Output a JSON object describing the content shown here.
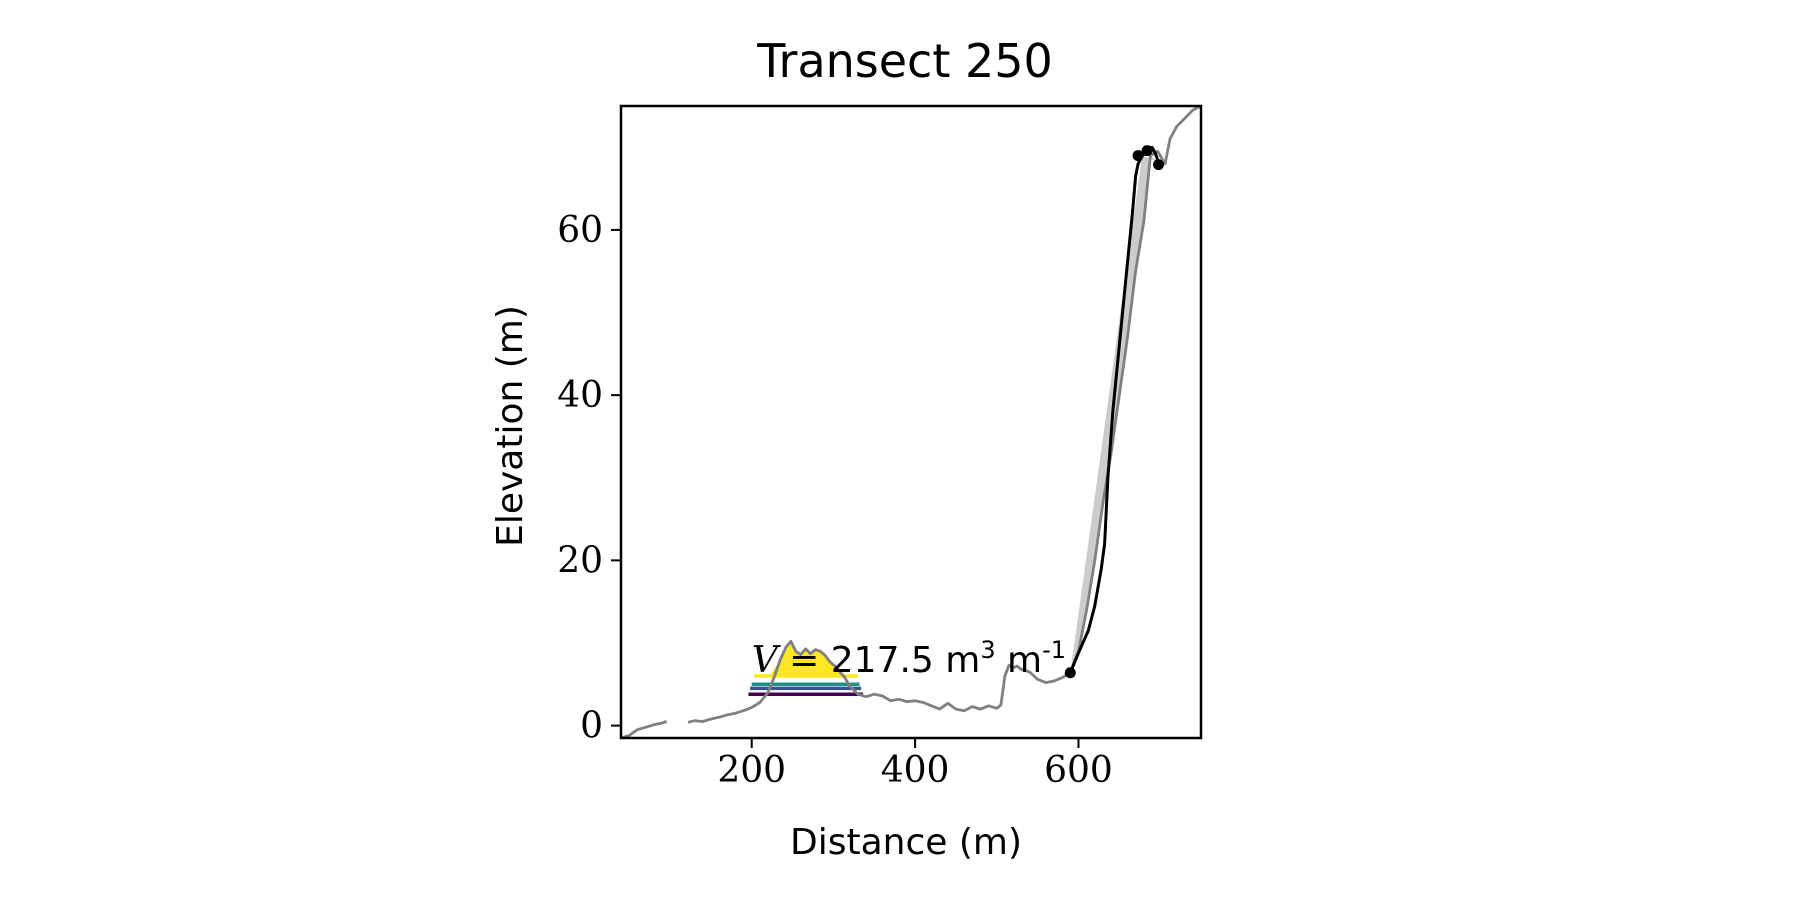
{
  "chart_data": {
    "type": "line",
    "title": "Transect 250",
    "xlabel": "Distance (m)",
    "ylabel": "Elevation (m)",
    "xlim": [
      40,
      750
    ],
    "ylim": [
      -1.5,
      75
    ],
    "xticks": [
      200,
      400,
      600
    ],
    "yticks": [
      0,
      20,
      40,
      60
    ],
    "grid": false,
    "colors": {
      "profile": "#808080",
      "cliff_line": "#000000",
      "cliff_fill": "#cccccc",
      "dune_fill": "#fde725",
      "level_1": "#fde725",
      "level_2": "#21918c",
      "level_3": "#3b528b",
      "level_4": "#440154"
    },
    "profile_segments": [
      [
        [
          40,
          -1.5
        ],
        [
          50,
          -1.2
        ],
        [
          60,
          -0.5
        ],
        [
          70,
          -0.2
        ],
        [
          80,
          0.1
        ],
        [
          90,
          0.3
        ],
        [
          96,
          0.5
        ]
      ],
      [
        [
          122,
          0.4
        ],
        [
          130,
          0.6
        ],
        [
          140,
          0.5
        ],
        [
          150,
          0.8
        ],
        [
          160,
          1.0
        ],
        [
          170,
          1.3
        ],
        [
          180,
          1.5
        ],
        [
          190,
          1.8
        ],
        [
          200,
          2.2
        ],
        [
          210,
          2.8
        ],
        [
          220,
          4.0
        ],
        [
          228,
          6.0
        ],
        [
          235,
          8.0
        ],
        [
          242,
          9.5
        ],
        [
          248,
          10.2
        ],
        [
          254,
          9.0
        ],
        [
          260,
          8.6
        ],
        [
          266,
          9.3
        ],
        [
          272,
          8.7
        ],
        [
          278,
          9.2
        ],
        [
          284,
          9.0
        ],
        [
          290,
          8.5
        ],
        [
          296,
          7.7
        ],
        [
          302,
          7.2
        ],
        [
          308,
          6.5
        ],
        [
          314,
          5.8
        ],
        [
          320,
          4.8
        ],
        [
          326,
          4.2
        ],
        [
          330,
          3.8
        ],
        [
          340,
          3.5
        ],
        [
          350,
          3.8
        ],
        [
          360,
          3.6
        ],
        [
          370,
          3.0
        ],
        [
          380,
          3.2
        ],
        [
          390,
          2.9
        ],
        [
          400,
          3.0
        ],
        [
          410,
          2.8
        ],
        [
          420,
          2.4
        ],
        [
          430,
          2.0
        ],
        [
          440,
          2.7
        ],
        [
          450,
          2.0
        ],
        [
          460,
          1.8
        ],
        [
          470,
          2.3
        ],
        [
          480,
          2.0
        ],
        [
          490,
          2.4
        ],
        [
          500,
          2.1
        ],
        [
          505,
          2.5
        ],
        [
          510,
          6.0
        ],
        [
          515,
          7.3
        ],
        [
          520,
          7.0
        ],
        [
          525,
          7.2
        ],
        [
          530,
          6.8
        ],
        [
          540,
          6.5
        ],
        [
          550,
          5.6
        ],
        [
          560,
          5.2
        ],
        [
          570,
          5.4
        ],
        [
          580,
          5.8
        ],
        [
          590,
          6.4
        ],
        [
          600,
          9.0
        ],
        [
          610,
          14.0
        ],
        [
          620,
          20.0
        ],
        [
          630,
          27.0
        ],
        [
          640,
          33.0
        ],
        [
          650,
          40.0
        ],
        [
          660,
          47.0
        ],
        [
          670,
          55.0
        ],
        [
          680,
          61.0
        ],
        [
          688,
          69.0
        ],
        [
          697,
          69.5
        ],
        [
          706,
          68.0
        ],
        [
          712,
          71.0
        ],
        [
          720,
          72.5
        ],
        [
          730,
          73.5
        ],
        [
          740,
          74.5
        ],
        [
          750,
          75.0
        ]
      ]
    ],
    "cliff_line": [
      [
        590,
        6.4
      ],
      [
        600,
        8.8
      ],
      [
        612,
        11.5
      ],
      [
        620,
        14.5
      ],
      [
        628,
        19.0
      ],
      [
        632,
        22.0
      ],
      [
        636,
        30.0
      ],
      [
        642,
        38.0
      ],
      [
        650,
        46.0
      ],
      [
        658,
        54.0
      ],
      [
        666,
        62.0
      ],
      [
        670,
        66.5
      ],
      [
        673,
        68.0
      ],
      [
        678,
        69.0
      ],
      [
        684,
        69.5
      ],
      [
        690,
        70.0
      ],
      [
        694,
        69.3
      ],
      [
        698,
        68.2
      ]
    ],
    "cliff_points": [
      [
        590,
        6.4
      ],
      [
        673,
        69.0
      ],
      [
        684,
        69.6
      ],
      [
        698,
        67.9
      ]
    ],
    "cliff_fill": {
      "top": [
        [
          590,
          6.4
        ],
        [
          678,
          69.0
        ],
        [
          698,
          68.2
        ]
      ],
      "bottom": [
        [
          590,
          6.4
        ],
        [
          600,
          9.0
        ],
        [
          610,
          14.0
        ],
        [
          620,
          20.0
        ],
        [
          630,
          27.0
        ],
        [
          640,
          33.0
        ],
        [
          650,
          40.0
        ],
        [
          660,
          47.0
        ],
        [
          670,
          55.0
        ],
        [
          680,
          61.0
        ],
        [
          688,
          69.0
        ],
        [
          698,
          68.2
        ]
      ]
    },
    "dune_fill_level": 6.0,
    "dune_fill_xrange": [
      222,
      318
    ],
    "volume_levels": [
      {
        "y": 6.0,
        "x": [
          203,
          330
        ],
        "color": "#fde725"
      },
      {
        "y": 5.0,
        "x": [
          200,
          332
        ],
        "color": "#21918c"
      },
      {
        "y": 4.5,
        "x": [
          198,
          334
        ],
        "color": "#3b528b"
      },
      {
        "y": 3.8,
        "x": [
          196,
          336
        ],
        "color": "#440154"
      }
    ],
    "annotation": {
      "var": "V",
      "text": " = 217.5 m",
      "exp1": "3",
      "mid": " m",
      "exp2": "-1",
      "x": 200,
      "y": 6.5
    }
  }
}
